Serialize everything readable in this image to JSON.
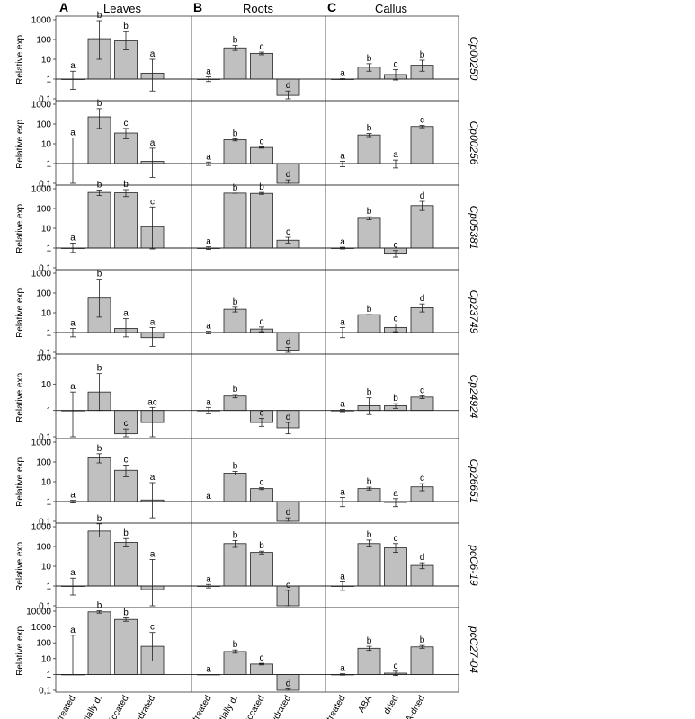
{
  "panels": [
    {
      "letter": "A",
      "title": "Leaves"
    },
    {
      "letter": "B",
      "title": "Roots"
    },
    {
      "letter": "C",
      "title": "Callus"
    }
  ],
  "x_labels": {
    "leaves": [
      "untreated",
      "partially d.",
      "desiccated",
      "rehydrated"
    ],
    "roots": [
      "untreated",
      "partially d.",
      "desiccated",
      "rehydrated"
    ],
    "callus": [
      "untreated",
      "ABA",
      "dried",
      "ABA-dried"
    ]
  },
  "ylabel": "Relative exp.",
  "chart_data": {
    "type": "bar",
    "log_scale": true,
    "baseline": 1,
    "ylim_default": [
      0.1,
      1000
    ],
    "tick_labels": {
      "0.1": "0,1",
      "1": "1",
      "10": "10",
      "100": "100",
      "1000": "1000",
      "10000": "10000"
    },
    "rows": [
      {
        "gene": "Cp00250",
        "ylim": [
          0.1,
          1000
        ],
        "leaves": {
          "values": [
            1,
            110,
            85,
            2
          ],
          "err_low": [
            0.3,
            10,
            30,
            0.25
          ],
          "err_high": [
            2.5,
            900,
            250,
            10
          ],
          "letters": [
            "a",
            "b",
            "b",
            "a"
          ]
        },
        "roots": {
          "values": [
            1,
            38,
            20,
            0.15
          ],
          "err_low": [
            0.75,
            28,
            17,
            0.1
          ],
          "err_high": [
            1.3,
            50,
            23,
            0.25
          ],
          "letters": [
            "a",
            "b",
            "c",
            "d"
          ]
        },
        "callus": {
          "values": [
            1,
            4,
            1.7,
            5
          ],
          "err_low": [
            0.95,
            2.5,
            0.9,
            2.5
          ],
          "err_high": [
            1.05,
            6,
            3,
            9
          ],
          "letters": [
            "a",
            "b",
            "c",
            "b"
          ]
        }
      },
      {
        "gene": "Cp00256",
        "ylim": [
          0.1,
          1000
        ],
        "leaves": {
          "values": [
            1,
            230,
            35,
            1.3
          ],
          "err_low": [
            0.1,
            60,
            18,
            0.2
          ],
          "err_high": [
            20,
            600,
            60,
            6
          ],
          "letters": [
            "a",
            "b",
            "c",
            "a"
          ]
        },
        "roots": {
          "values": [
            1,
            16,
            6.5,
            0.1
          ],
          "err_low": [
            0.8,
            14,
            6,
            0.1
          ],
          "err_high": [
            1.2,
            18,
            7,
            0.15
          ],
          "letters": [
            "a",
            "b",
            "c",
            "d"
          ]
        },
        "callus": {
          "values": [
            1,
            28,
            1,
            75
          ],
          "err_low": [
            0.7,
            23,
            0.6,
            65
          ],
          "err_high": [
            1.3,
            33,
            1.5,
            85
          ],
          "letters": [
            "a",
            "b",
            "a",
            "c"
          ]
        }
      },
      {
        "gene": "Cp05381",
        "ylim": [
          0.1,
          1000
        ],
        "leaves": {
          "values": [
            1,
            650,
            620,
            12
          ],
          "err_low": [
            0.6,
            450,
            400,
            0.9
          ],
          "err_high": [
            1.8,
            850,
            900,
            120
          ],
          "letters": [
            "a",
            "b",
            "b",
            "c"
          ]
        },
        "roots": {
          "values": [
            1,
            600,
            580,
            2.5
          ],
          "err_low": [
            0.85,
            600,
            520,
            1.8
          ],
          "err_high": [
            1.15,
            600,
            650,
            3.5
          ],
          "letters": [
            "a",
            "b",
            "b",
            "c"
          ]
        },
        "callus": {
          "values": [
            1,
            32,
            0.5,
            140
          ],
          "err_low": [
            0.9,
            27,
            0.35,
            80
          ],
          "err_high": [
            1.1,
            38,
            0.75,
            230
          ],
          "letters": [
            "a",
            "b",
            "c",
            "d"
          ]
        }
      },
      {
        "gene": "Cp23749",
        "ylim": [
          0.1,
          1000
        ],
        "leaves": {
          "values": [
            1,
            55,
            1.6,
            0.55
          ],
          "err_low": [
            0.6,
            6,
            0.6,
            0.2
          ],
          "err_high": [
            1.6,
            500,
            5,
            1.8
          ],
          "letters": [
            "a",
            "b",
            "a",
            "a"
          ]
        },
        "roots": {
          "values": [
            1,
            15,
            1.5,
            0.13
          ],
          "err_low": [
            0.85,
            11,
            1.1,
            0.1
          ],
          "err_high": [
            1.15,
            19,
            1.9,
            0.18
          ],
          "letters": [
            "a",
            "b",
            "c",
            "d"
          ]
        },
        "callus": {
          "values": [
            1,
            8,
            1.8,
            18
          ],
          "err_low": [
            0.55,
            8,
            1.1,
            11
          ],
          "err_high": [
            1.8,
            8,
            2.7,
            28
          ],
          "letters": [
            "a",
            "b",
            "c",
            "d"
          ]
        }
      },
      {
        "gene": "Cp24924",
        "ylim": [
          0.1,
          100
        ],
        "leaves": {
          "values": [
            1,
            5,
            0.13,
            0.35
          ],
          "err_low": [
            0.1,
            1,
            0.1,
            0.1
          ],
          "err_high": [
            5,
            25,
            0.2,
            1.3
          ],
          "letters": [
            "a",
            "b",
            "c",
            "ac"
          ]
        },
        "roots": {
          "values": [
            1,
            3.5,
            0.35,
            0.22
          ],
          "err_low": [
            0.75,
            3,
            0.25,
            0.13
          ],
          "err_high": [
            1.3,
            4,
            0.5,
            0.35
          ],
          "letters": [
            "a",
            "b",
            "c",
            "d"
          ]
        },
        "callus": {
          "values": [
            1,
            1.5,
            1.5,
            3.2
          ],
          "err_low": [
            0.9,
            0.7,
            1.2,
            2.8
          ],
          "err_high": [
            1.1,
            3,
            1.8,
            3.6
          ],
          "letters": [
            "a",
            "b",
            "b",
            "c"
          ]
        }
      },
      {
        "gene": "Cp26651",
        "ylim": [
          0.1,
          1000
        ],
        "leaves": {
          "values": [
            1,
            160,
            38,
            1.2
          ],
          "err_low": [
            0.85,
            90,
            18,
            0.15
          ],
          "err_high": [
            1.15,
            260,
            70,
            9
          ],
          "letters": [
            "a",
            "b",
            "c",
            "a"
          ]
        },
        "roots": {
          "values": [
            1,
            27,
            4.5,
            0.1
          ],
          "err_low": [
            1,
            22,
            4,
            0.1
          ],
          "err_high": [
            1,
            33,
            5,
            0.15
          ],
          "letters": [
            "a",
            "b",
            "c",
            "d"
          ]
        },
        "callus": {
          "values": [
            1,
            4.5,
            0.9,
            5.5
          ],
          "err_low": [
            0.55,
            3.8,
            0.55,
            3.5
          ],
          "err_high": [
            1.6,
            5.3,
            1.4,
            8
          ],
          "letters": [
            "a",
            "b",
            "a",
            "c"
          ]
        }
      },
      {
        "gene": "pcC6-19",
        "ylim": [
          0.1,
          1000
        ],
        "leaves": {
          "values": [
            1,
            600,
            160,
            0.65
          ],
          "err_low": [
            0.35,
            300,
            95,
            0.1
          ],
          "err_high": [
            2.5,
            1400,
            250,
            22
          ],
          "letters": [
            "a",
            "b",
            "b",
            "a"
          ]
        },
        "roots": {
          "values": [
            1,
            140,
            50,
            0.1
          ],
          "err_low": [
            0.8,
            90,
            42,
            0.1
          ],
          "err_high": [
            1.2,
            200,
            58,
            0.6
          ],
          "letters": [
            "a",
            "b",
            "b",
            "c"
          ]
        },
        "callus": {
          "values": [
            1,
            140,
            85,
            11
          ],
          "err_low": [
            0.6,
            95,
            50,
            7.5
          ],
          "err_high": [
            1.6,
            210,
            140,
            15
          ],
          "letters": [
            "a",
            "b",
            "c",
            "d"
          ]
        }
      },
      {
        "gene": "pcC27-04",
        "ylim": [
          0.1,
          10000
        ],
        "leaves": {
          "values": [
            1,
            9000,
            3000,
            60
          ],
          "err_low": [
            1,
            7500,
            2300,
            7
          ],
          "err_high": [
            300,
            10500,
            3800,
            450
          ],
          "letters": [
            "a",
            "b",
            "b",
            "c"
          ]
        },
        "roots": {
          "values": [
            1,
            28,
            4.5,
            0.1
          ],
          "err_low": [
            1,
            22,
            4,
            0.1
          ],
          "err_high": [
            1,
            35,
            5,
            0.12
          ],
          "letters": [
            "a",
            "b",
            "c",
            "d"
          ]
        },
        "callus": {
          "values": [
            1,
            45,
            1.2,
            55
          ],
          "err_low": [
            0.9,
            33,
            0.85,
            45
          ],
          "err_high": [
            1.1,
            60,
            1.6,
            68
          ],
          "letters": [
            "a",
            "b",
            "c",
            "b"
          ]
        }
      }
    ]
  }
}
